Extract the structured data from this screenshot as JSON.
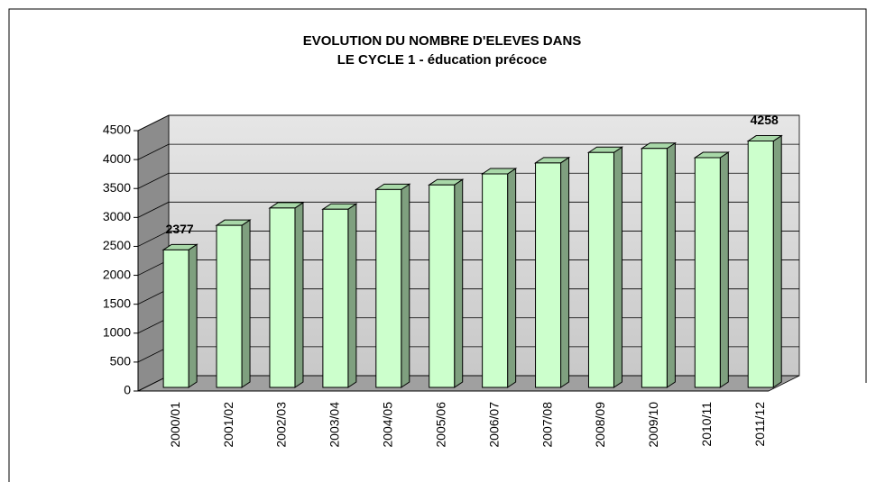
{
  "chart_data": {
    "type": "bar3d",
    "title": [
      "EVOLUTION DU NOMBRE D'ELEVES DANS",
      "LE CYCLE 1 - éducation précoce"
    ],
    "categories": [
      "2000/01",
      "2001/02",
      "2002/03",
      "2003/04",
      "2004/05",
      "2005/06",
      "2006/07",
      "2007/08",
      "2008/09",
      "2009/10",
      "2010/11",
      "2011/12"
    ],
    "values": [
      2377,
      2800,
      3100,
      3080,
      3420,
      3500,
      3690,
      3880,
      4060,
      4130,
      3970,
      4258
    ],
    "color": "#ccffcc",
    "ylim": [
      0,
      4500
    ],
    "yticks": [
      0,
      500,
      1000,
      1500,
      2000,
      2500,
      3000,
      3500,
      4000,
      4500
    ],
    "grid": true
  }
}
